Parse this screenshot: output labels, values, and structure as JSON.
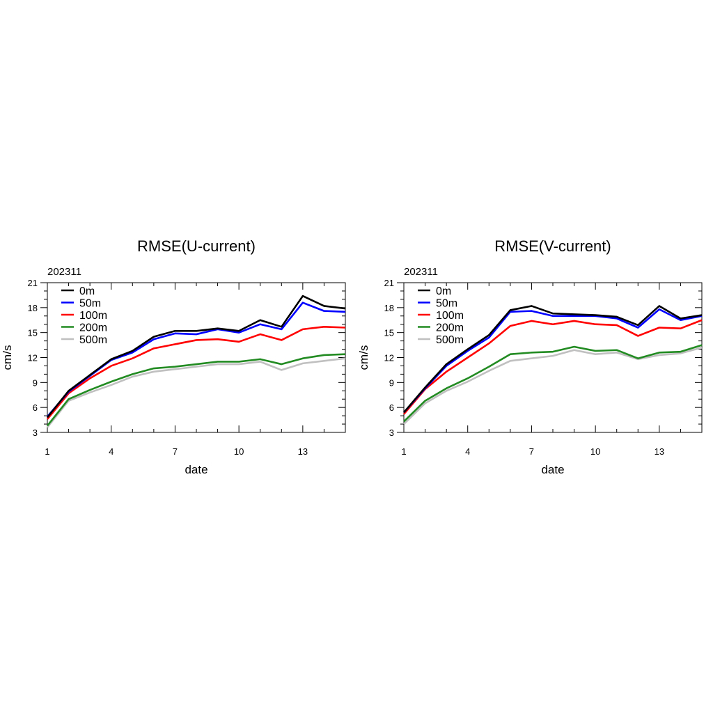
{
  "chart_data": [
    {
      "type": "line",
      "title": "RMSE(U-current)",
      "subtitle": "202311",
      "xlabel": "date",
      "ylabel": "cm/s",
      "xlim": [
        1,
        15
      ],
      "ylim": [
        3,
        21
      ],
      "xticks": [
        1,
        4,
        7,
        10,
        13
      ],
      "yticks": [
        3,
        6,
        9,
        12,
        15,
        18,
        21
      ],
      "legend": "top-left",
      "grid": false,
      "x": [
        1,
        2,
        3,
        4,
        5,
        6,
        7,
        8,
        9,
        10,
        11,
        12,
        13,
        14,
        15
      ],
      "series": [
        {
          "name": "0m",
          "color": "#000000",
          "values": [
            4.8,
            8.0,
            9.9,
            11.8,
            12.8,
            14.5,
            15.2,
            15.2,
            15.5,
            15.2,
            16.5,
            15.7,
            19.4,
            18.2,
            17.9
          ]
        },
        {
          "name": "50m",
          "color": "#0000ff",
          "values": [
            4.9,
            7.9,
            9.8,
            11.7,
            12.6,
            14.2,
            14.9,
            14.8,
            15.4,
            15.0,
            16.0,
            15.4,
            18.6,
            17.6,
            17.5
          ]
        },
        {
          "name": "100m",
          "color": "#ff0000",
          "values": [
            4.6,
            7.7,
            9.5,
            11.0,
            11.9,
            13.1,
            13.6,
            14.1,
            14.2,
            13.9,
            14.8,
            14.1,
            15.4,
            15.7,
            15.6
          ]
        },
        {
          "name": "200m",
          "color": "#228b22",
          "values": [
            3.8,
            7.0,
            8.1,
            9.1,
            10.0,
            10.7,
            10.9,
            11.2,
            11.5,
            11.5,
            11.8,
            11.2,
            11.9,
            12.3,
            12.4
          ]
        },
        {
          "name": "500m",
          "color": "#c0c0c0",
          "values": [
            3.6,
            6.8,
            7.8,
            8.7,
            9.7,
            10.3,
            10.6,
            10.9,
            11.2,
            11.2,
            11.5,
            10.5,
            11.3,
            11.6,
            11.9
          ]
        }
      ]
    },
    {
      "type": "line",
      "title": "RMSE(V-current)",
      "subtitle": "202311",
      "xlabel": "date",
      "ylabel": "cm/s",
      "xlim": [
        1,
        15
      ],
      "ylim": [
        3,
        21
      ],
      "xticks": [
        1,
        4,
        7,
        10,
        13
      ],
      "yticks": [
        3,
        6,
        9,
        12,
        15,
        18,
        21
      ],
      "legend": "top-left",
      "grid": false,
      "x": [
        1,
        2,
        3,
        4,
        5,
        6,
        7,
        8,
        9,
        10,
        11,
        12,
        13,
        14,
        15
      ],
      "series": [
        {
          "name": "0m",
          "color": "#000000",
          "values": [
            5.4,
            8.4,
            11.2,
            13.0,
            14.7,
            17.7,
            18.2,
            17.3,
            17.2,
            17.1,
            16.9,
            15.9,
            18.2,
            16.7,
            17.1
          ]
        },
        {
          "name": "50m",
          "color": "#0000ff",
          "values": [
            5.4,
            8.3,
            11.0,
            12.8,
            14.4,
            17.5,
            17.6,
            17.0,
            17.0,
            17.0,
            16.7,
            15.6,
            17.8,
            16.5,
            17.0
          ]
        },
        {
          "name": "100m",
          "color": "#ff0000",
          "values": [
            5.2,
            8.2,
            10.3,
            12.0,
            13.7,
            15.8,
            16.4,
            16.0,
            16.4,
            16.0,
            15.9,
            14.6,
            15.6,
            15.5,
            16.5
          ]
        },
        {
          "name": "200m",
          "color": "#228b22",
          "values": [
            4.3,
            6.8,
            8.3,
            9.5,
            10.9,
            12.4,
            12.6,
            12.7,
            13.3,
            12.8,
            12.9,
            11.9,
            12.6,
            12.7,
            13.5
          ]
        },
        {
          "name": "500m",
          "color": "#c0c0c0",
          "values": [
            4.0,
            6.5,
            8.0,
            9.1,
            10.4,
            11.6,
            11.9,
            12.2,
            12.9,
            12.4,
            12.6,
            11.8,
            12.3,
            12.5,
            13.2
          ]
        }
      ]
    }
  ]
}
